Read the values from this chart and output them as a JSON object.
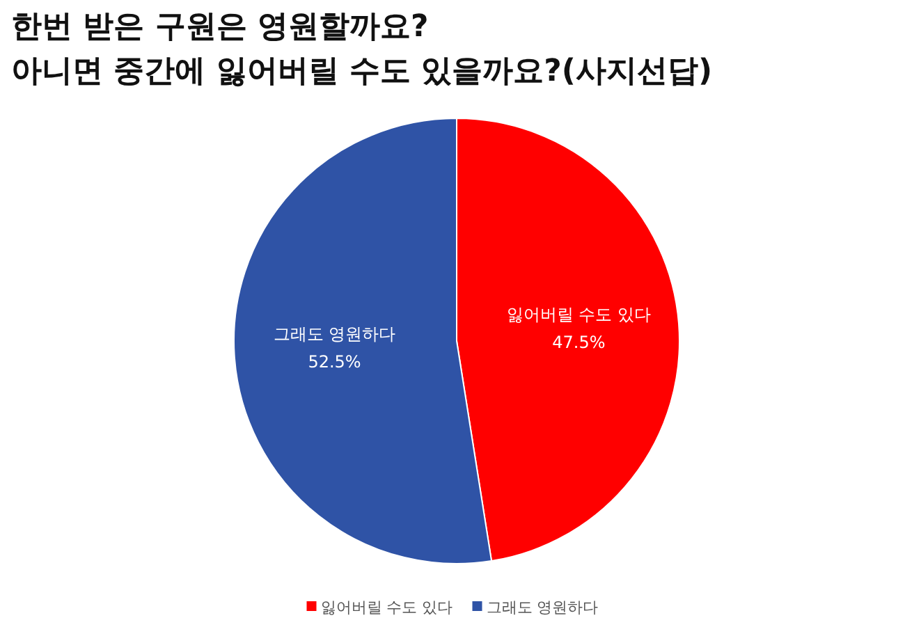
{
  "chart_data": {
    "type": "pie",
    "title": "한번 받은 구원은 영원할까요?",
    "subtitle": "아니면 중간에 잃어버릴 수도 있을까요?(사지선답)",
    "categories": [
      "잃어버릴 수도 있다",
      "그래도 영원하다"
    ],
    "values": [
      47.5,
      52.5
    ],
    "colors": [
      "#ff0000",
      "#2f53a6"
    ],
    "value_labels": [
      "47.5%",
      "52.5%"
    ],
    "legend": "bottom"
  }
}
